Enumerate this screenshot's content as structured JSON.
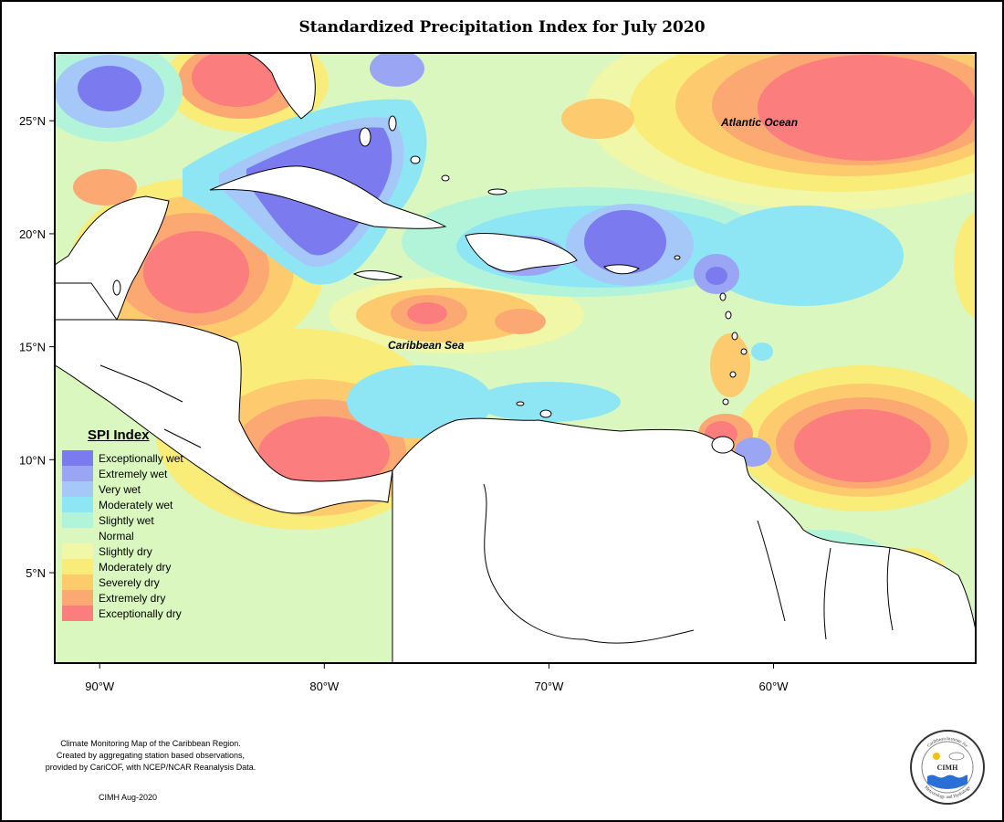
{
  "title": "Standardized Precipitation Index for July 2020",
  "map": {
    "lon_range": [
      -92,
      -51
    ],
    "lat_range": [
      1,
      28
    ],
    "lon_ticks": [
      {
        "value": -90,
        "label": "90°W"
      },
      {
        "value": -80,
        "label": "80°W"
      },
      {
        "value": -70,
        "label": "70°W"
      },
      {
        "value": -60,
        "label": "60°W"
      }
    ],
    "lat_ticks": [
      {
        "value": 25,
        "label": "25°N"
      },
      {
        "value": 20,
        "label": "20°N"
      },
      {
        "value": 15,
        "label": "15°N"
      },
      {
        "value": 10,
        "label": "10°N"
      },
      {
        "value": 5,
        "label": "5°N"
      }
    ],
    "ocean_labels": {
      "atlantic": "Atlantic Ocean",
      "caribbean": "Caribbean Sea"
    },
    "background_color": "#d9f7bf",
    "land_color": "#ffffff"
  },
  "legend": {
    "title": "SPI Index",
    "items": [
      {
        "label": "Exceptionally wet",
        "color": "#7b7bef"
      },
      {
        "label": "Extremely wet",
        "color": "#9aa6f4"
      },
      {
        "label": "Very wet",
        "color": "#a6c8f8"
      },
      {
        "label": "Moderately wet",
        "color": "#8ee6f4"
      },
      {
        "label": "Slightly wet",
        "color": "#b2f4da"
      },
      {
        "label": "Normal",
        "color": "#d9f7bf"
      },
      {
        "label": "Slightly dry",
        "color": "#f0f7a6"
      },
      {
        "label": "Moderately dry",
        "color": "#f9ec78"
      },
      {
        "label": "Severely dry",
        "color": "#fdcb6e"
      },
      {
        "label": "Extremely dry",
        "color": "#fca873"
      },
      {
        "label": "Exceptionally dry",
        "color": "#fb7d7d"
      }
    ]
  },
  "caption": {
    "line1": "Climate Monitoring Map of the Caribbean Region.",
    "line2": "Created by aggregating station based observations,",
    "line3": "provided by CariCOF, with NCEP/NCAR Reanalysis Data."
  },
  "credit": "CIMH Aug-2020",
  "logo": {
    "center_text": "CIMH",
    "ring_text_top": "Caribbean Institute for",
    "ring_text_bottom": "Meteorology and Hydrology"
  }
}
